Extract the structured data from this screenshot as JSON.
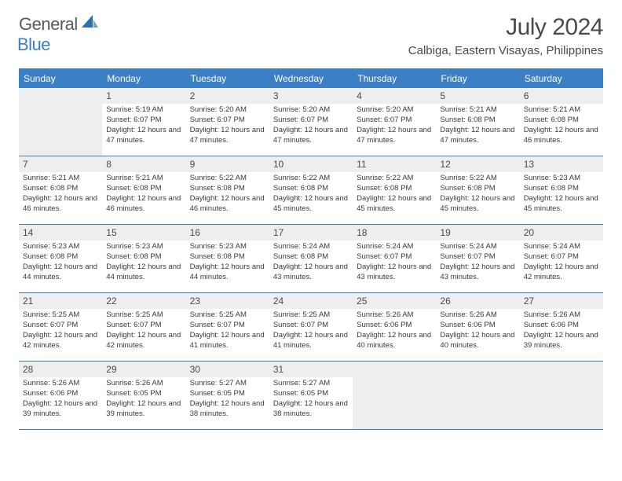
{
  "brand": {
    "general": "General",
    "blue": "Blue",
    "icon_color": "#2f6fb0",
    "icon_light": "#6aa3d8"
  },
  "title": "July 2024",
  "location": "Calbiga, Eastern Visayas, Philippines",
  "colors": {
    "header_bg": "#3b7fc4",
    "header_text": "#ffffff",
    "border": "#3b7fc4",
    "cell_shade": "#eeeeee",
    "text": "#3a3a3a"
  },
  "day_names": [
    "Sunday",
    "Monday",
    "Tuesday",
    "Wednesday",
    "Thursday",
    "Friday",
    "Saturday"
  ],
  "weeks": [
    [
      null,
      {
        "n": "1",
        "sr": "5:19 AM",
        "ss": "6:07 PM",
        "dl": "12 hours and 47 minutes."
      },
      {
        "n": "2",
        "sr": "5:20 AM",
        "ss": "6:07 PM",
        "dl": "12 hours and 47 minutes."
      },
      {
        "n": "3",
        "sr": "5:20 AM",
        "ss": "6:07 PM",
        "dl": "12 hours and 47 minutes."
      },
      {
        "n": "4",
        "sr": "5:20 AM",
        "ss": "6:07 PM",
        "dl": "12 hours and 47 minutes."
      },
      {
        "n": "5",
        "sr": "5:21 AM",
        "ss": "6:08 PM",
        "dl": "12 hours and 47 minutes."
      },
      {
        "n": "6",
        "sr": "5:21 AM",
        "ss": "6:08 PM",
        "dl": "12 hours and 46 minutes."
      }
    ],
    [
      {
        "n": "7",
        "sr": "5:21 AM",
        "ss": "6:08 PM",
        "dl": "12 hours and 46 minutes."
      },
      {
        "n": "8",
        "sr": "5:21 AM",
        "ss": "6:08 PM",
        "dl": "12 hours and 46 minutes."
      },
      {
        "n": "9",
        "sr": "5:22 AM",
        "ss": "6:08 PM",
        "dl": "12 hours and 46 minutes."
      },
      {
        "n": "10",
        "sr": "5:22 AM",
        "ss": "6:08 PM",
        "dl": "12 hours and 45 minutes."
      },
      {
        "n": "11",
        "sr": "5:22 AM",
        "ss": "6:08 PM",
        "dl": "12 hours and 45 minutes."
      },
      {
        "n": "12",
        "sr": "5:22 AM",
        "ss": "6:08 PM",
        "dl": "12 hours and 45 minutes."
      },
      {
        "n": "13",
        "sr": "5:23 AM",
        "ss": "6:08 PM",
        "dl": "12 hours and 45 minutes."
      }
    ],
    [
      {
        "n": "14",
        "sr": "5:23 AM",
        "ss": "6:08 PM",
        "dl": "12 hours and 44 minutes."
      },
      {
        "n": "15",
        "sr": "5:23 AM",
        "ss": "6:08 PM",
        "dl": "12 hours and 44 minutes."
      },
      {
        "n": "16",
        "sr": "5:23 AM",
        "ss": "6:08 PM",
        "dl": "12 hours and 44 minutes."
      },
      {
        "n": "17",
        "sr": "5:24 AM",
        "ss": "6:08 PM",
        "dl": "12 hours and 43 minutes."
      },
      {
        "n": "18",
        "sr": "5:24 AM",
        "ss": "6:07 PM",
        "dl": "12 hours and 43 minutes."
      },
      {
        "n": "19",
        "sr": "5:24 AM",
        "ss": "6:07 PM",
        "dl": "12 hours and 43 minutes."
      },
      {
        "n": "20",
        "sr": "5:24 AM",
        "ss": "6:07 PM",
        "dl": "12 hours and 42 minutes."
      }
    ],
    [
      {
        "n": "21",
        "sr": "5:25 AM",
        "ss": "6:07 PM",
        "dl": "12 hours and 42 minutes."
      },
      {
        "n": "22",
        "sr": "5:25 AM",
        "ss": "6:07 PM",
        "dl": "12 hours and 42 minutes."
      },
      {
        "n": "23",
        "sr": "5:25 AM",
        "ss": "6:07 PM",
        "dl": "12 hours and 41 minutes."
      },
      {
        "n": "24",
        "sr": "5:25 AM",
        "ss": "6:07 PM",
        "dl": "12 hours and 41 minutes."
      },
      {
        "n": "25",
        "sr": "5:26 AM",
        "ss": "6:06 PM",
        "dl": "12 hours and 40 minutes."
      },
      {
        "n": "26",
        "sr": "5:26 AM",
        "ss": "6:06 PM",
        "dl": "12 hours and 40 minutes."
      },
      {
        "n": "27",
        "sr": "5:26 AM",
        "ss": "6:06 PM",
        "dl": "12 hours and 39 minutes."
      }
    ],
    [
      {
        "n": "28",
        "sr": "5:26 AM",
        "ss": "6:06 PM",
        "dl": "12 hours and 39 minutes."
      },
      {
        "n": "29",
        "sr": "5:26 AM",
        "ss": "6:05 PM",
        "dl": "12 hours and 39 minutes."
      },
      {
        "n": "30",
        "sr": "5:27 AM",
        "ss": "6:05 PM",
        "dl": "12 hours and 38 minutes."
      },
      {
        "n": "31",
        "sr": "5:27 AM",
        "ss": "6:05 PM",
        "dl": "12 hours and 38 minutes."
      },
      null,
      null,
      null
    ]
  ],
  "labels": {
    "sunrise_prefix": "Sunrise: ",
    "sunset_prefix": "Sunset: ",
    "daylight_prefix": "Daylight: "
  }
}
